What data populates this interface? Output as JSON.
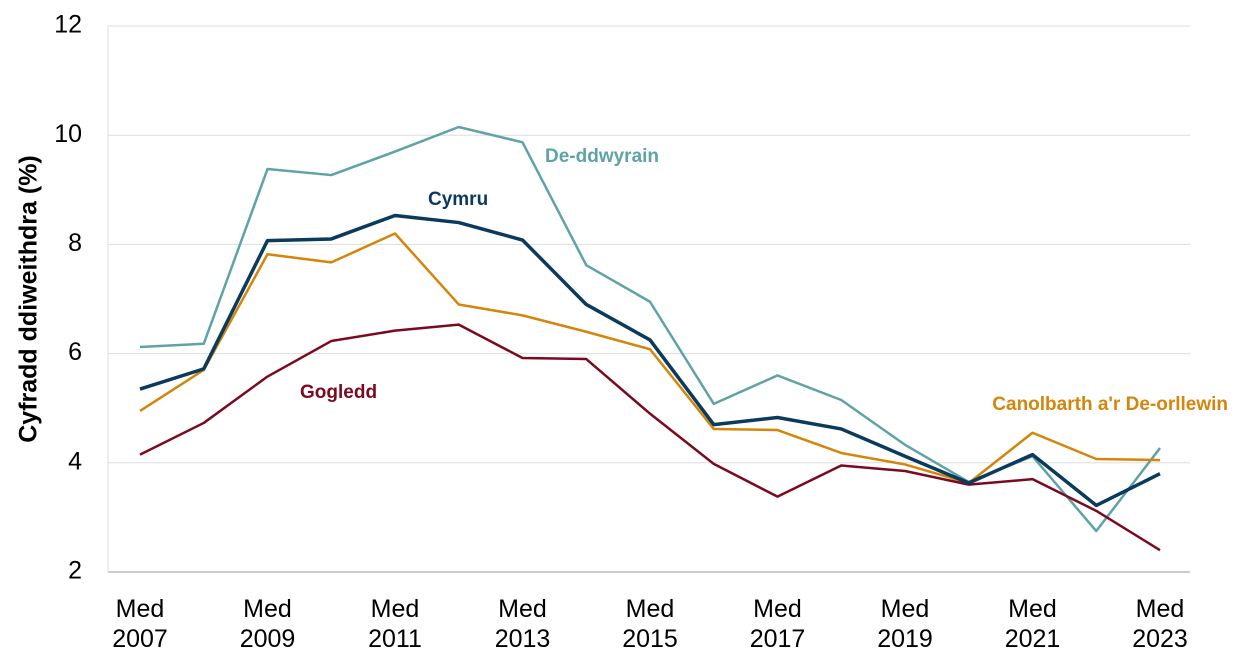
{
  "chart_data": {
    "type": "line",
    "y_label": "Cyfradd ddiweithdra (%)",
    "categories": [
      "Med 2007",
      null,
      "Med 2009",
      null,
      "Med 2011",
      null,
      "Med 2013",
      null,
      "Med 2015",
      null,
      "Med 2017",
      null,
      "Med 2019",
      null,
      "Med 2021",
      null,
      "Med 2023"
    ],
    "series": [
      {
        "name": "De-ddwyrain",
        "color": "#5fa3a6",
        "values": [
          6.12,
          6.18,
          9.38,
          9.27,
          9.7,
          10.15,
          9.87,
          7.62,
          6.95,
          5.08,
          5.6,
          5.15,
          4.33,
          3.65,
          4.12,
          2.75,
          4.27
        ]
      },
      {
        "name": "Canolbarth a'r De-orllewin",
        "color": "#d4860b",
        "values": [
          4.95,
          5.7,
          7.82,
          7.67,
          8.2,
          6.9,
          6.7,
          6.4,
          6.08,
          4.62,
          4.6,
          4.18,
          3.97,
          3.63,
          4.55,
          4.07,
          4.05
        ]
      },
      {
        "name": "Gogledd",
        "color": "#7b0a20",
        "values": [
          4.15,
          4.73,
          5.58,
          6.23,
          6.42,
          6.53,
          5.92,
          5.9,
          4.9,
          3.98,
          3.38,
          3.95,
          3.85,
          3.6,
          3.7,
          3.12,
          2.4
        ]
      },
      {
        "name": "Cymru",
        "color": "#0b3a5d",
        "values": [
          5.35,
          5.72,
          8.07,
          8.1,
          8.53,
          8.4,
          8.08,
          6.9,
          6.25,
          4.7,
          4.83,
          4.62,
          4.12,
          3.63,
          4.15,
          3.22,
          3.8
        ]
      }
    ],
    "ylim": [
      2,
      12
    ],
    "yticks": [
      2,
      4,
      6,
      8,
      10,
      12
    ],
    "grid": true
  }
}
